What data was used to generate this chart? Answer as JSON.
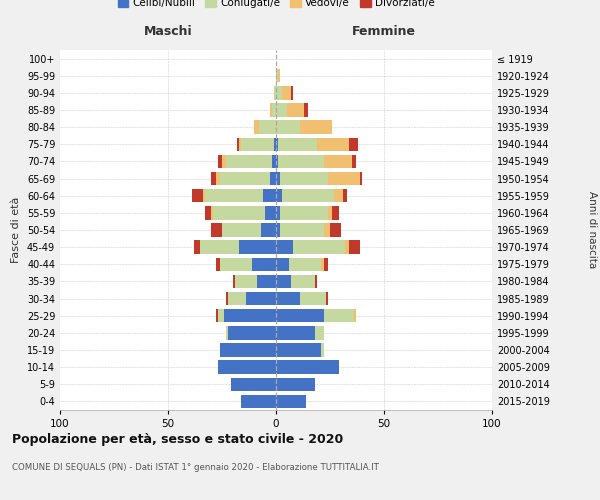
{
  "age_groups": [
    "0-4",
    "5-9",
    "10-14",
    "15-19",
    "20-24",
    "25-29",
    "30-34",
    "35-39",
    "40-44",
    "45-49",
    "50-54",
    "55-59",
    "60-64",
    "65-69",
    "70-74",
    "75-79",
    "80-84",
    "85-89",
    "90-94",
    "95-99",
    "100+"
  ],
  "birth_years": [
    "2015-2019",
    "2010-2014",
    "2005-2009",
    "2000-2004",
    "1995-1999",
    "1990-1994",
    "1985-1989",
    "1980-1984",
    "1975-1979",
    "1970-1974",
    "1965-1969",
    "1960-1964",
    "1955-1959",
    "1950-1954",
    "1945-1949",
    "1940-1944",
    "1935-1939",
    "1930-1934",
    "1925-1929",
    "1920-1924",
    "≤ 1919"
  ],
  "maschi": {
    "celibi": [
      16,
      21,
      27,
      26,
      22,
      24,
      14,
      9,
      11,
      17,
      7,
      5,
      6,
      3,
      2,
      1,
      0,
      0,
      0,
      0,
      0
    ],
    "coniugati": [
      0,
      0,
      0,
      0,
      1,
      3,
      8,
      10,
      15,
      18,
      18,
      24,
      27,
      23,
      21,
      15,
      8,
      2,
      1,
      0,
      0
    ],
    "vedovi": [
      0,
      0,
      0,
      0,
      0,
      0,
      0,
      0,
      0,
      0,
      0,
      1,
      1,
      2,
      2,
      1,
      2,
      1,
      0,
      0,
      0
    ],
    "divorziati": [
      0,
      0,
      0,
      0,
      0,
      1,
      1,
      1,
      2,
      3,
      5,
      3,
      5,
      2,
      2,
      1,
      0,
      0,
      0,
      0,
      0
    ]
  },
  "femmine": {
    "nubili": [
      14,
      18,
      29,
      21,
      18,
      22,
      11,
      7,
      6,
      8,
      2,
      2,
      3,
      2,
      1,
      1,
      0,
      0,
      0,
      0,
      0
    ],
    "coniugate": [
      0,
      0,
      0,
      1,
      4,
      14,
      12,
      11,
      15,
      24,
      20,
      22,
      24,
      22,
      21,
      18,
      11,
      5,
      3,
      1,
      0
    ],
    "vedove": [
      0,
      0,
      0,
      0,
      0,
      1,
      0,
      0,
      1,
      2,
      3,
      2,
      4,
      15,
      13,
      15,
      15,
      8,
      4,
      1,
      0
    ],
    "divorziate": [
      0,
      0,
      0,
      0,
      0,
      0,
      1,
      1,
      2,
      5,
      5,
      3,
      2,
      1,
      2,
      4,
      0,
      2,
      1,
      0,
      0
    ]
  },
  "colors": {
    "celibi_nubili": "#4472C4",
    "coniugati": "#C5D8A0",
    "vedovi": "#F0C070",
    "divorziati": "#C0392B"
  },
  "xlim": 100,
  "title": "Popolazione per età, sesso e stato civile - 2020",
  "subtitle": "COMUNE DI SEQUALS (PN) - Dati ISTAT 1° gennaio 2020 - Elaborazione TUTTITALIA.IT",
  "ylabel_left": "Fasce di età",
  "ylabel_right": "Anni di nascita",
  "xlabel_left": "Maschi",
  "xlabel_right": "Femmine",
  "bg_color": "#f0f0f0",
  "plot_bg": "#ffffff"
}
